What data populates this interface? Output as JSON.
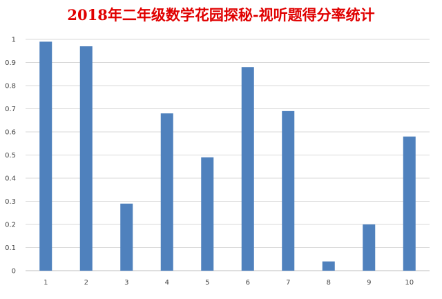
{
  "chart_data": {
    "type": "bar",
    "title": "2018年二年级数学花园探秘-视听题得分率统计",
    "categories": [
      "1",
      "2",
      "3",
      "4",
      "5",
      "6",
      "7",
      "8",
      "9",
      "10"
    ],
    "values": [
      0.99,
      0.97,
      0.29,
      0.68,
      0.49,
      0.88,
      0.69,
      0.04,
      0.2,
      0.58
    ],
    "ylim": [
      0,
      1
    ],
    "yticks": [
      "0",
      "0.1",
      "0.2",
      "0.3",
      "0.4",
      "0.5",
      "0.6",
      "0.7",
      "0.8",
      "0.9",
      "1"
    ],
    "grid": true,
    "legend": "none",
    "bar_color": "#4f81bd",
    "title_color": "#e00000"
  }
}
